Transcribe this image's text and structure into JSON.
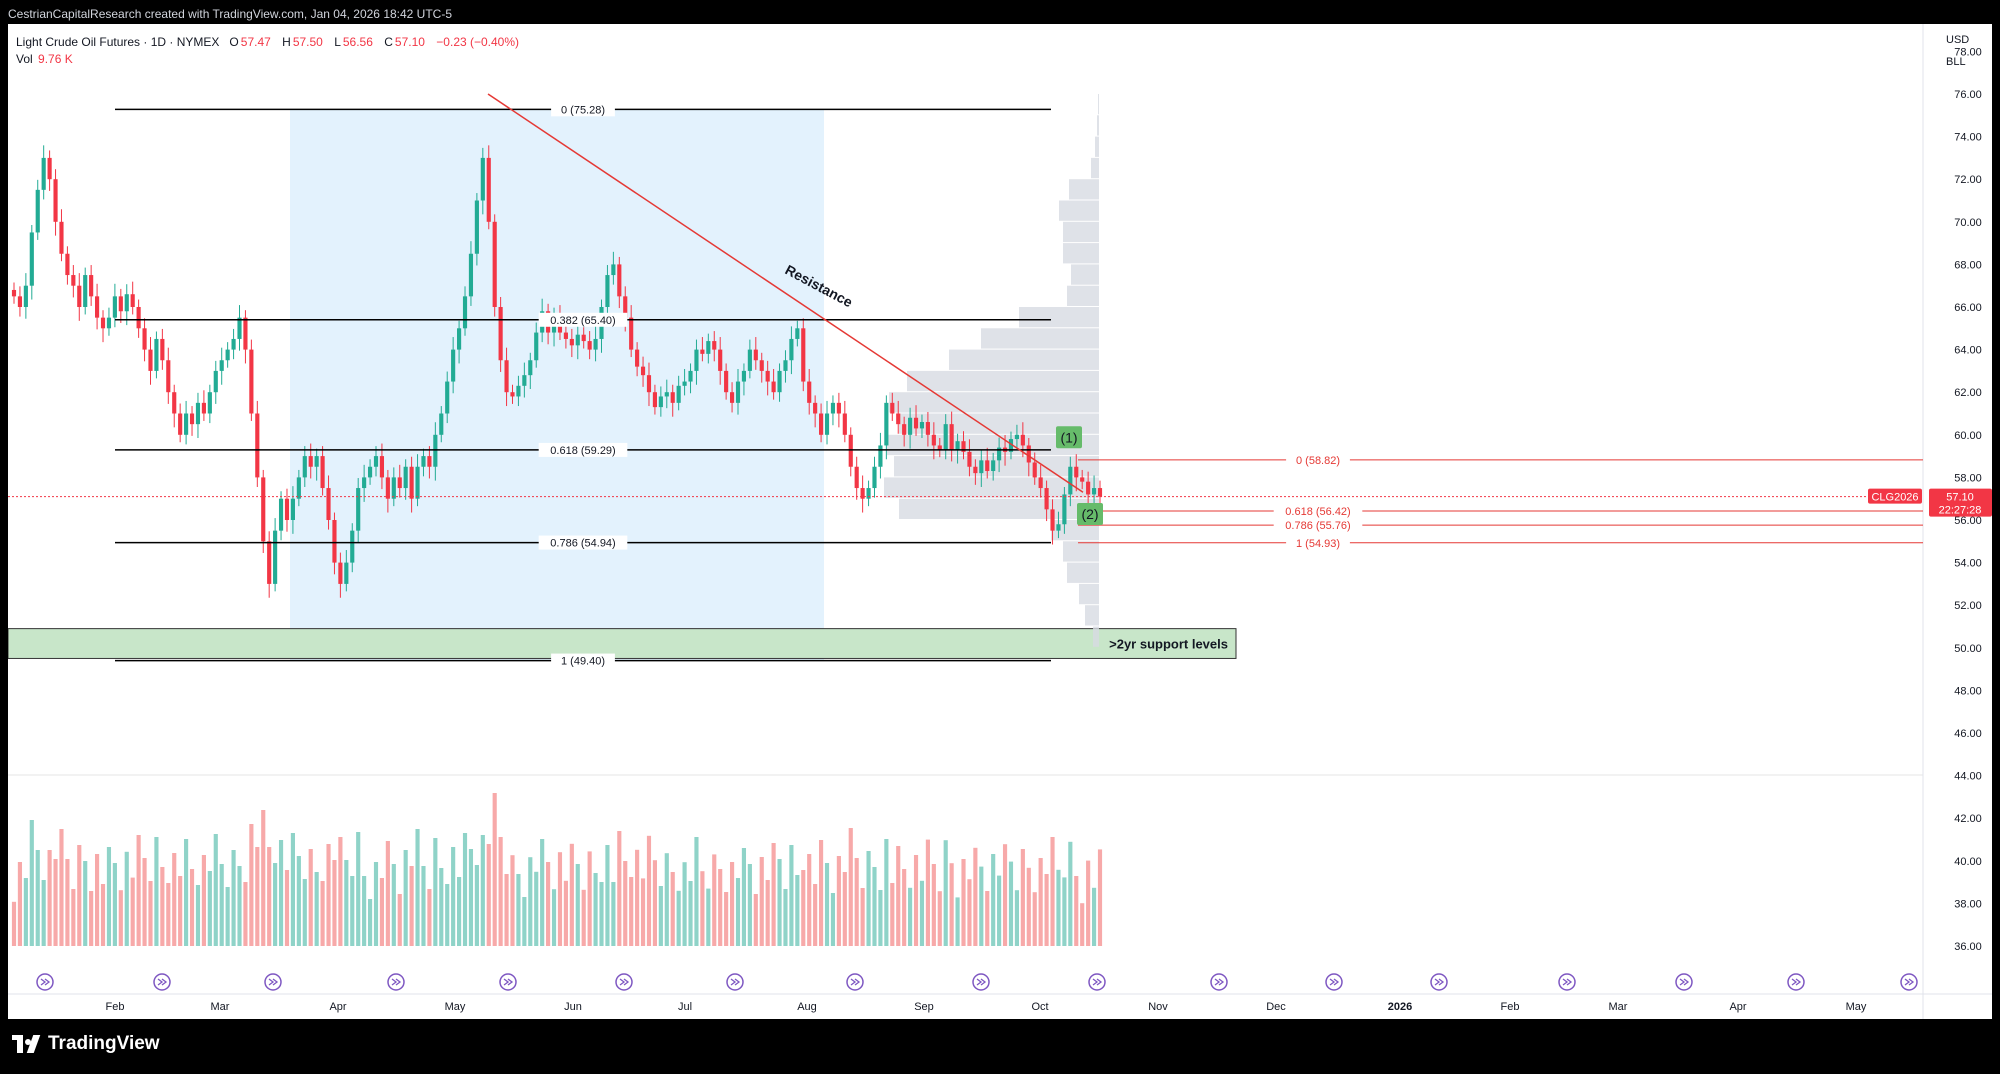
{
  "header": {
    "attribution": "CestrianCapitalResearch created with TradingView.com, Jan 04, 2026 18:42 UTC-5"
  },
  "legend": {
    "instrument": "Light Crude Oil Futures · 1D · NYMEX",
    "o_label": "O",
    "o_value": "57.47",
    "h_label": "H",
    "h_value": "57.50",
    "l_label": "L",
    "l_value": "56.56",
    "c_label": "C",
    "c_value": "57.10",
    "change": "−0.23 (−0.40%)",
    "vol_label": "Vol",
    "vol_value": "9.76 K"
  },
  "axis_header": {
    "currency": "USD",
    "unit": "BLL"
  },
  "footer": {
    "logo_text": "TradingView"
  },
  "colors": {
    "up": "#22ab94",
    "down": "#f23645",
    "up_vol": "#8fd3c8",
    "down_vol": "#f7a9a9",
    "fib_shade": "#e3f2fd",
    "support_zone": "#c8e6c9",
    "resistance": "#e53935",
    "profile": "#d7dbe2",
    "price_line": "#f23645"
  },
  "chart_data": {
    "type": "candlestick",
    "price_axis": {
      "min": 36,
      "max": 78,
      "step": 2,
      "ticks": [
        "78.00",
        "76.00",
        "74.00",
        "72.00",
        "70.00",
        "68.00",
        "66.00",
        "64.00",
        "62.00",
        "60.00",
        "58.00",
        "56.00",
        "54.00",
        "52.00",
        "50.00",
        "48.00",
        "46.00",
        "44.00",
        "42.00",
        "40.00",
        "38.00",
        "36.00"
      ]
    },
    "time_axis": [
      "Feb",
      "Mar",
      "Apr",
      "May",
      "Jun",
      "Jul",
      "Aug",
      "Sep",
      "Oct",
      "Nov",
      "Dec",
      "2026",
      "Feb",
      "Mar",
      "Apr",
      "May"
    ],
    "last_price": {
      "label": "CLG2026",
      "price": "57.10",
      "countdown": "22:27:28",
      "value": 57.1
    },
    "fib_major": [
      {
        "label": "0 (75.28)",
        "value": 75.28
      },
      {
        "label": "0.382 (65.40)",
        "value": 65.4
      },
      {
        "label": "0.618 (59.29)",
        "value": 59.29
      },
      {
        "label": "0.786 (54.94)",
        "value": 54.94
      },
      {
        "label": "1 (49.40)",
        "value": 49.4
      }
    ],
    "fib_minor": [
      {
        "label": "0 (58.82)",
        "value": 58.82
      },
      {
        "label": "0.618 (56.42)",
        "value": 56.42
      },
      {
        "label": "0.786 (55.76)",
        "value": 55.76
      },
      {
        "label": "1 (54.93)",
        "value": 54.93
      }
    ],
    "annotations": {
      "resistance": "Resistance",
      "wave1": "(1)",
      "wave2": "(2)",
      "support": ">2yr support levels",
      "support_zone": [
        49.5,
        50.9
      ]
    },
    "closes": [
      66.5,
      66.0,
      67.0,
      69.5,
      71.5,
      73.0,
      72.0,
      70.0,
      68.5,
      67.5,
      67.0,
      66.0,
      67.5,
      66.5,
      65.5,
      65.0,
      65.5,
      66.5,
      65.8,
      66.6,
      66.0,
      65.0,
      64.0,
      63.0,
      64.5,
      63.5,
      62.0,
      61.0,
      60.0,
      61.0,
      60.5,
      61.5,
      61.0,
      62.0,
      63.0,
      63.5,
      64.0,
      64.5,
      65.5,
      64.0,
      61.0,
      58.0,
      55.0,
      53.0,
      55.5,
      57.0,
      56.0,
      57.0,
      58.0,
      59.0,
      58.5,
      59.0,
      57.5,
      56.0,
      54.0,
      53.0,
      54.0,
      55.5,
      57.5,
      58.0,
      58.5,
      59.0,
      58.0,
      57.0,
      58.0,
      57.5,
      58.5,
      57.0,
      58.5,
      59.0,
      58.5,
      60.0,
      61.0,
      62.5,
      64.0,
      65.0,
      66.5,
      68.5,
      71.0,
      73.0,
      70.0,
      66.0,
      63.5,
      62.0,
      61.8,
      62.3,
      62.8,
      63.5,
      64.8,
      65.8,
      64.8,
      65.5,
      64.8,
      64.5,
      64.2,
      64.7,
      64.4,
      64.0,
      64.5,
      66.0,
      67.5,
      68.0,
      66.5,
      65.5,
      64.0,
      63.2,
      62.8,
      62.0,
      61.3,
      61.8,
      62.0,
      61.5,
      62.3,
      62.5,
      63.0,
      64.0,
      63.8,
      64.4,
      64.0,
      63.0,
      62.0,
      61.5,
      62.5,
      63.0,
      64.0,
      63.5,
      63.0,
      62.5,
      62.0,
      63.0,
      63.5,
      64.5,
      65.0,
      62.5,
      61.5,
      61.0,
      60.0,
      61.0,
      61.5,
      61.0,
      60.0,
      58.5,
      57.5,
      57.0,
      57.5,
      58.5,
      59.5,
      61.5,
      61.0,
      60.5,
      60.0,
      60.8,
      60.3,
      60.6,
      60.0,
      59.5,
      59.3,
      60.5,
      59.3,
      59.7,
      59.2,
      58.5,
      58.2,
      58.8,
      58.3,
      58.8,
      59.4,
      59.2,
      59.8,
      60.0,
      59.5,
      58.7,
      58.0,
      57.5,
      56.5,
      55.5,
      55.8,
      57.2,
      58.5,
      58.0,
      57.8,
      57.2,
      57.5,
      57.1
    ]
  }
}
